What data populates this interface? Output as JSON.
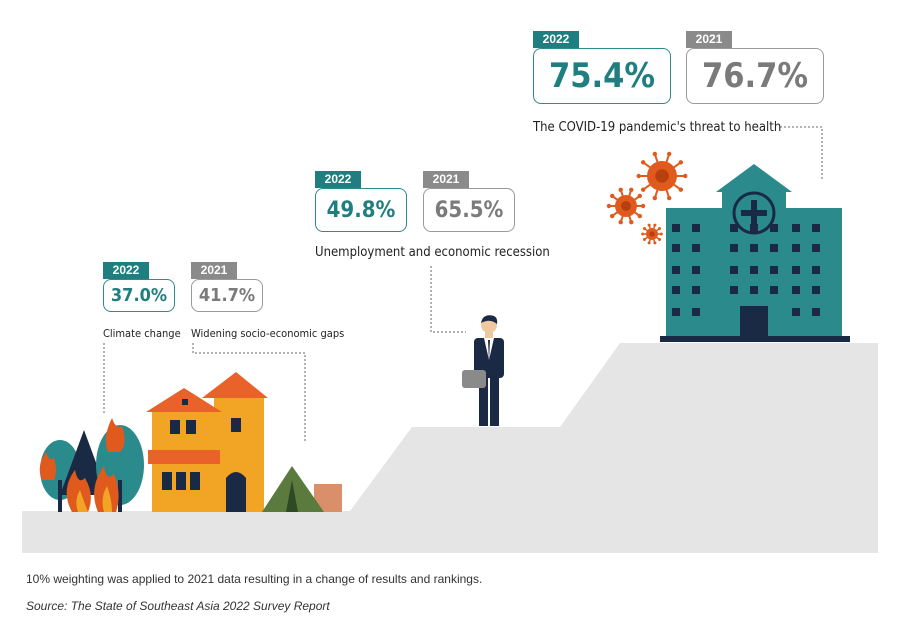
{
  "chart_data": {
    "type": "table",
    "categories": [
      "Climate change",
      "Widening socio-economic gaps",
      "Unemployment and economic recession",
      "The COVID-19 pandemic's threat to health"
    ],
    "series": [
      {
        "name": "2022",
        "values": [
          37.0,
          null,
          49.8,
          75.4
        ],
        "labels": [
          "37.0%",
          "",
          "49.8%",
          "75.4%"
        ]
      },
      {
        "name": "2021",
        "values": [
          null,
          41.7,
          65.5,
          76.7
        ],
        "labels": [
          "",
          "41.7%",
          "65.5%",
          "76.7%"
        ]
      }
    ]
  },
  "colors": {
    "teal": "#1f7f80",
    "gray": "#8a8a8a",
    "ground": "#e5e5e5"
  },
  "icons": [
    "burning-forest-icon",
    "house-icon",
    "tent-icon",
    "businessman-icon",
    "hospital-icon",
    "virus-icon"
  ],
  "footnote": "10% weighting was applied to 2021 data resulting in a change of results and rankings.",
  "source": "Source: The State of Southeast Asia 2022 Survey Report"
}
